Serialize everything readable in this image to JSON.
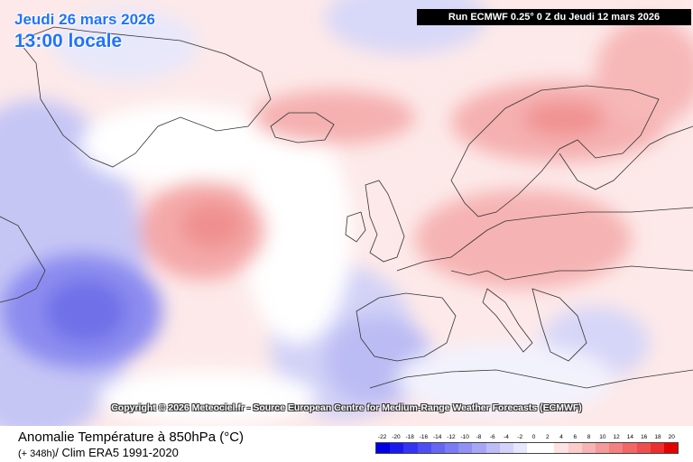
{
  "header": {
    "valid_date": "Jeudi 26 mars 2026",
    "valid_time": "13:00 locale",
    "run_info": "Run ECMWF 0.25° 0 Z du Jeudi 12 mars 2026"
  },
  "copyright": "Copyright © 2026 Meteociel.fr - Source European Centre for Medium-Range Weather Forecasts (ECMWF)",
  "footer": {
    "title": "Anomalie Température à 850hPa (°C)",
    "step": "(+ 348h)",
    "climatology": "/ Clim ERA5 1991-2020"
  },
  "legend": {
    "labels": [
      "-22",
      "-20",
      "-18",
      "-16",
      "-14",
      "-12",
      "-10",
      "-8",
      "-6",
      "-4",
      "-2",
      "0",
      "2",
      "4",
      "6",
      "8",
      "10",
      "12",
      "14",
      "16",
      "18",
      "20"
    ],
    "colors": [
      "#0000e6",
      "#1a1af0",
      "#3333f5",
      "#4d4df5",
      "#6666f5",
      "#7b7bf5",
      "#9090f5",
      "#a6a6f5",
      "#bcbcf7",
      "#d2d2fa",
      "#e6e6fc",
      "#ffffff",
      "#ffffff",
      "#fce2e2",
      "#facccc",
      "#f7b4b4",
      "#f59a9a",
      "#f58080",
      "#f26666",
      "#f04d4d",
      "#ed2e2e",
      "#e60000"
    ]
  },
  "colors": {
    "title_blue": "#1f73ff",
    "land_outline": "#333333",
    "run_box": "#000000"
  }
}
